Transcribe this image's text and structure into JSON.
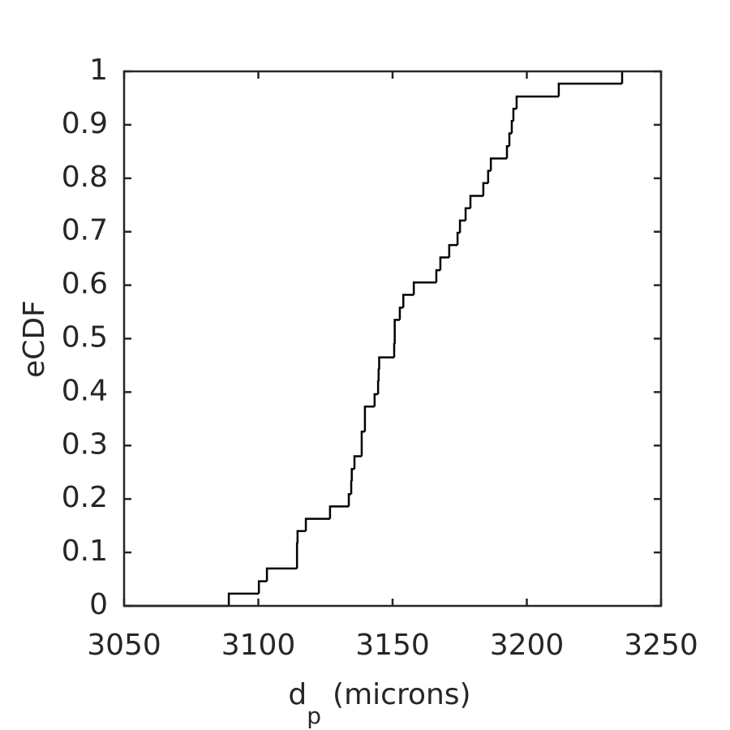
{
  "chart_data": {
    "type": "step",
    "xlabel": {
      "symbol": "d",
      "subscript": "p",
      "unit": "(microns)"
    },
    "ylabel": "eCDF",
    "x": [
      3089,
      3100.2,
      3103.2,
      3114.4,
      3114.6,
      3117.7,
      3126.7,
      3133.7,
      3134.6,
      3134.8,
      3135.8,
      3138.5,
      3139.7,
      3143.3,
      3144.6,
      3144.8,
      3145,
      3150.6,
      3150.8,
      3152.7,
      3154,
      3157.9,
      3166.3,
      3167.8,
      3171.1,
      3174.2,
      3175.1,
      3177.2,
      3179,
      3183.8,
      3185.6,
      3186.6,
      3192.6,
      3193.5,
      3194.4,
      3195,
      3196.2,
      3211.9,
      3235.5
    ],
    "y": [
      0.023,
      0.046,
      0.07,
      0.117,
      0.14,
      0.163,
      0.186,
      0.209,
      0.233,
      0.256,
      0.28,
      0.326,
      0.373,
      0.396,
      0.42,
      0.442,
      0.465,
      0.49,
      0.535,
      0.558,
      0.582,
      0.605,
      0.628,
      0.652,
      0.675,
      0.698,
      0.721,
      0.744,
      0.767,
      0.791,
      0.814,
      0.837,
      0.86,
      0.884,
      0.907,
      0.93,
      0.953,
      0.977,
      1
    ],
    "color": "#000000",
    "xlim": [
      3050,
      3250
    ],
    "xticks": [
      3050,
      3100,
      3150,
      3200,
      3250
    ],
    "ylim": [
      0,
      1
    ],
    "yticks": [
      0,
      0.1,
      0.2,
      0.3,
      0.4,
      0.5,
      0.6,
      0.7,
      0.8,
      0.9,
      1
    ]
  }
}
